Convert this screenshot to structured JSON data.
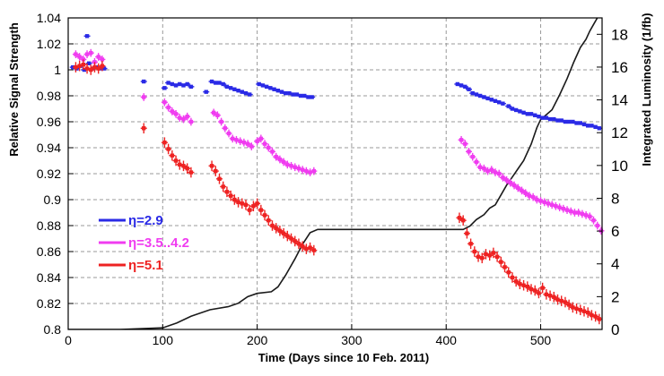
{
  "chart_data": {
    "type": "scatter",
    "xlabel": "Time (Days since 10 Feb. 2011)",
    "ylabel": "Relative Signal Strength",
    "y2label": "Integrated Luminosity (1/fb)",
    "xlim": [
      0,
      565
    ],
    "ylim": [
      0.8,
      1.04
    ],
    "y2lim": [
      0,
      19
    ],
    "xticks": [
      "0",
      "100",
      "200",
      "300",
      "400",
      "500"
    ],
    "yticks": [
      "0.8",
      "0.82",
      "0.84",
      "0.86",
      "0.88",
      "0.9",
      "0.92",
      "0.94",
      "0.96",
      "0.98",
      "1",
      "1.02",
      "1.04"
    ],
    "y2ticks": [
      "0",
      "2",
      "4",
      "6",
      "8",
      "10",
      "12",
      "14",
      "16",
      "18"
    ],
    "grid": "dashed",
    "legend_position": "lower-left",
    "colors": {
      "eta29": "#2a2ae6",
      "eta35": "#f03cf0",
      "eta51": "#ee2222",
      "lumi": "#1a1a1a"
    },
    "series": [
      {
        "name": "η=2.9",
        "color": "#2a2ae6",
        "points": [
          [
            5,
            1.002
          ],
          [
            9,
            1.001
          ],
          [
            13,
            1.003
          ],
          [
            17,
            1.0
          ],
          [
            20,
            1.026
          ],
          [
            22,
            1.005
          ],
          [
            26,
            1.001
          ],
          [
            30,
            1.002
          ],
          [
            34,
            1.001
          ],
          [
            38,
            1.001
          ],
          [
            80,
            0.991
          ],
          [
            102,
            0.986
          ],
          [
            106,
            0.99
          ],
          [
            110,
            0.989
          ],
          [
            114,
            0.988
          ],
          [
            118,
            0.989
          ],
          [
            122,
            0.988
          ],
          [
            126,
            0.989
          ],
          [
            130,
            0.987
          ],
          [
            146,
            0.983
          ],
          [
            152,
            0.991
          ],
          [
            156,
            0.99
          ],
          [
            160,
            0.99
          ],
          [
            164,
            0.989
          ],
          [
            168,
            0.987
          ],
          [
            172,
            0.986
          ],
          [
            176,
            0.985
          ],
          [
            180,
            0.984
          ],
          [
            184,
            0.983
          ],
          [
            188,
            0.982
          ],
          [
            192,
            0.981
          ],
          [
            202,
            0.989
          ],
          [
            206,
            0.988
          ],
          [
            210,
            0.987
          ],
          [
            214,
            0.986
          ],
          [
            218,
            0.985
          ],
          [
            222,
            0.984
          ],
          [
            226,
            0.983
          ],
          [
            230,
            0.982
          ],
          [
            234,
            0.982
          ],
          [
            238,
            0.981
          ],
          [
            242,
            0.981
          ],
          [
            246,
            0.98
          ],
          [
            250,
            0.98
          ],
          [
            254,
            0.979
          ],
          [
            258,
            0.979
          ],
          [
            412,
            0.989
          ],
          [
            416,
            0.988
          ],
          [
            420,
            0.987
          ],
          [
            424,
            0.985
          ],
          [
            428,
            0.982
          ],
          [
            432,
            0.981
          ],
          [
            436,
            0.98
          ],
          [
            440,
            0.979
          ],
          [
            444,
            0.978
          ],
          [
            448,
            0.977
          ],
          [
            452,
            0.976
          ],
          [
            456,
            0.975
          ],
          [
            460,
            0.974
          ],
          [
            466,
            0.972
          ],
          [
            470,
            0.97
          ],
          [
            474,
            0.969
          ],
          [
            478,
            0.968
          ],
          [
            482,
            0.967
          ],
          [
            486,
            0.966
          ],
          [
            490,
            0.966
          ],
          [
            494,
            0.965
          ],
          [
            498,
            0.964
          ],
          [
            502,
            0.963
          ],
          [
            506,
            0.963
          ],
          [
            510,
            0.962
          ],
          [
            514,
            0.962
          ],
          [
            518,
            0.961
          ],
          [
            522,
            0.961
          ],
          [
            526,
            0.96
          ],
          [
            530,
            0.96
          ],
          [
            534,
            0.96
          ],
          [
            538,
            0.959
          ],
          [
            542,
            0.959
          ],
          [
            546,
            0.958
          ],
          [
            550,
            0.957
          ],
          [
            554,
            0.957
          ],
          [
            558,
            0.956
          ],
          [
            562,
            0.955
          ]
        ]
      },
      {
        "name": "η=3.5..4.2",
        "color": "#f03cf0",
        "points": [
          [
            8,
            1.012
          ],
          [
            12,
            1.01
          ],
          [
            16,
            1.008
          ],
          [
            20,
            1.012
          ],
          [
            24,
            1.013
          ],
          [
            28,
            1.006
          ],
          [
            32,
            1.01
          ],
          [
            36,
            1.008
          ],
          [
            80,
            0.979
          ],
          [
            102,
            0.975
          ],
          [
            106,
            0.971
          ],
          [
            110,
            0.968
          ],
          [
            114,
            0.966
          ],
          [
            118,
            0.963
          ],
          [
            122,
            0.962
          ],
          [
            126,
            0.964
          ],
          [
            130,
            0.96
          ],
          [
            154,
            0.967
          ],
          [
            158,
            0.965
          ],
          [
            162,
            0.96
          ],
          [
            166,
            0.955
          ],
          [
            170,
            0.951
          ],
          [
            174,
            0.947
          ],
          [
            178,
            0.946
          ],
          [
            182,
            0.945
          ],
          [
            186,
            0.944
          ],
          [
            190,
            0.943
          ],
          [
            194,
            0.941
          ],
          [
            200,
            0.945
          ],
          [
            204,
            0.947
          ],
          [
            208,
            0.943
          ],
          [
            212,
            0.94
          ],
          [
            216,
            0.937
          ],
          [
            220,
            0.933
          ],
          [
            224,
            0.931
          ],
          [
            228,
            0.929
          ],
          [
            232,
            0.927
          ],
          [
            236,
            0.926
          ],
          [
            240,
            0.925
          ],
          [
            244,
            0.924
          ],
          [
            248,
            0.923
          ],
          [
            252,
            0.922
          ],
          [
            256,
            0.921
          ],
          [
            260,
            0.922
          ],
          [
            416,
            0.946
          ],
          [
            420,
            0.943
          ],
          [
            424,
            0.937
          ],
          [
            428,
            0.933
          ],
          [
            432,
            0.929
          ],
          [
            436,
            0.925
          ],
          [
            440,
            0.924
          ],
          [
            444,
            0.922
          ],
          [
            448,
            0.923
          ],
          [
            452,
            0.921
          ],
          [
            456,
            0.92
          ],
          [
            460,
            0.917
          ],
          [
            464,
            0.915
          ],
          [
            468,
            0.913
          ],
          [
            472,
            0.911
          ],
          [
            476,
            0.909
          ],
          [
            480,
            0.907
          ],
          [
            484,
            0.905
          ],
          [
            488,
            0.903
          ],
          [
            492,
            0.902
          ],
          [
            496,
            0.9
          ],
          [
            500,
            0.899
          ],
          [
            504,
            0.898
          ],
          [
            508,
            0.897
          ],
          [
            512,
            0.896
          ],
          [
            516,
            0.895
          ],
          [
            520,
            0.894
          ],
          [
            524,
            0.893
          ],
          [
            528,
            0.892
          ],
          [
            532,
            0.891
          ],
          [
            536,
            0.89
          ],
          [
            540,
            0.89
          ],
          [
            544,
            0.889
          ],
          [
            548,
            0.888
          ],
          [
            552,
            0.887
          ],
          [
            556,
            0.884
          ],
          [
            560,
            0.88
          ],
          [
            564,
            0.876
          ]
        ]
      },
      {
        "name": "η=5.1",
        "color": "#ee2222",
        "points": [
          [
            8,
            1.002
          ],
          [
            12,
            1.003
          ],
          [
            16,
            1.004
          ],
          [
            20,
            1.001
          ],
          [
            24,
            1.0
          ],
          [
            28,
            1.002
          ],
          [
            32,
            1.001
          ],
          [
            36,
            1.003
          ],
          [
            80,
            0.955
          ],
          [
            102,
            0.944
          ],
          [
            106,
            0.939
          ],
          [
            110,
            0.934
          ],
          [
            114,
            0.93
          ],
          [
            118,
            0.927
          ],
          [
            122,
            0.926
          ],
          [
            126,
            0.924
          ],
          [
            130,
            0.921
          ],
          [
            152,
            0.926
          ],
          [
            156,
            0.922
          ],
          [
            160,
            0.916
          ],
          [
            164,
            0.91
          ],
          [
            168,
            0.906
          ],
          [
            172,
            0.903
          ],
          [
            176,
            0.9
          ],
          [
            180,
            0.898
          ],
          [
            184,
            0.897
          ],
          [
            188,
            0.896
          ],
          [
            192,
            0.892
          ],
          [
            196,
            0.895
          ],
          [
            200,
            0.897
          ],
          [
            204,
            0.892
          ],
          [
            208,
            0.888
          ],
          [
            212,
            0.884
          ],
          [
            216,
            0.88
          ],
          [
            220,
            0.878
          ],
          [
            224,
            0.876
          ],
          [
            228,
            0.874
          ],
          [
            232,
            0.872
          ],
          [
            236,
            0.87
          ],
          [
            240,
            0.868
          ],
          [
            244,
            0.866
          ],
          [
            248,
            0.864
          ],
          [
            252,
            0.862
          ],
          [
            256,
            0.863
          ],
          [
            260,
            0.861
          ],
          [
            414,
            0.886
          ],
          [
            418,
            0.884
          ],
          [
            422,
            0.874
          ],
          [
            426,
            0.866
          ],
          [
            430,
            0.86
          ],
          [
            434,
            0.856
          ],
          [
            438,
            0.855
          ],
          [
            442,
            0.858
          ],
          [
            446,
            0.857
          ],
          [
            450,
            0.859
          ],
          [
            454,
            0.856
          ],
          [
            458,
            0.852
          ],
          [
            462,
            0.848
          ],
          [
            466,
            0.844
          ],
          [
            470,
            0.84
          ],
          [
            474,
            0.837
          ],
          [
            478,
            0.835
          ],
          [
            482,
            0.834
          ],
          [
            486,
            0.833
          ],
          [
            490,
            0.831
          ],
          [
            494,
            0.83
          ],
          [
            498,
            0.828
          ],
          [
            502,
            0.832
          ],
          [
            506,
            0.827
          ],
          [
            510,
            0.826
          ],
          [
            514,
            0.825
          ],
          [
            518,
            0.823
          ],
          [
            522,
            0.822
          ],
          [
            526,
            0.821
          ],
          [
            530,
            0.819
          ],
          [
            534,
            0.817
          ],
          [
            538,
            0.816
          ],
          [
            542,
            0.815
          ],
          [
            546,
            0.814
          ],
          [
            550,
            0.813
          ],
          [
            554,
            0.811
          ],
          [
            558,
            0.81
          ],
          [
            562,
            0.808
          ]
        ]
      }
    ],
    "luminosity": [
      [
        0,
        0
      ],
      [
        55,
        0
      ],
      [
        100,
        0.1
      ],
      [
        115,
        0.4
      ],
      [
        130,
        0.8
      ],
      [
        150,
        1.2
      ],
      [
        170,
        1.4
      ],
      [
        180,
        1.6
      ],
      [
        190,
        2.0
      ],
      [
        200,
        2.2
      ],
      [
        215,
        2.3
      ],
      [
        222,
        2.6
      ],
      [
        230,
        3.3
      ],
      [
        240,
        4.3
      ],
      [
        248,
        5.2
      ],
      [
        256,
        5.9
      ],
      [
        264,
        6.1
      ],
      [
        280,
        6.1
      ],
      [
        300,
        6.1
      ],
      [
        350,
        6.1
      ],
      [
        400,
        6.1
      ],
      [
        418,
        6.1
      ],
      [
        425,
        6.3
      ],
      [
        432,
        6.7
      ],
      [
        440,
        7.0
      ],
      [
        446,
        7.4
      ],
      [
        452,
        7.6
      ],
      [
        458,
        8.2
      ],
      [
        464,
        8.8
      ],
      [
        470,
        9.3
      ],
      [
        476,
        9.8
      ],
      [
        482,
        10.3
      ],
      [
        490,
        11.3
      ],
      [
        496,
        12.3
      ],
      [
        500,
        12.8
      ],
      [
        506,
        13.1
      ],
      [
        512,
        13.4
      ],
      [
        520,
        14.3
      ],
      [
        528,
        15.3
      ],
      [
        535,
        16.3
      ],
      [
        542,
        17.2
      ],
      [
        548,
        17.7
      ],
      [
        552,
        18.2
      ],
      [
        556,
        18.6
      ],
      [
        560,
        19.0
      ],
      [
        565,
        19.3
      ]
    ]
  }
}
